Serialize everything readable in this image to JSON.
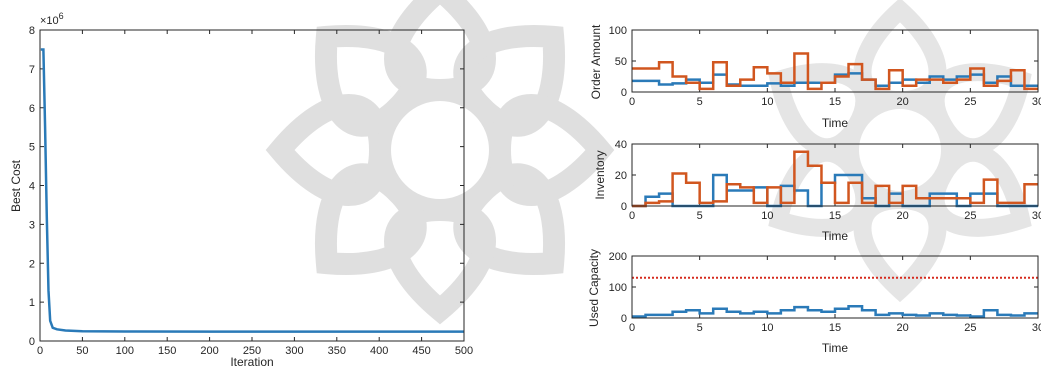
{
  "colors": {
    "blue": "#2a7ab8",
    "orange": "#d1561f",
    "red": "#d62b1e",
    "axis": "#262626",
    "wm": "#d9d9d9"
  },
  "chart_data": [
    {
      "id": "cost",
      "type": "line",
      "xlabel": "Iteration",
      "ylabel": "Best Cost",
      "exponent_label": "×10",
      "exponent_power": "6",
      "xlim": [
        0,
        500
      ],
      "ylim": [
        0,
        8000000
      ],
      "xticks": [
        0,
        50,
        100,
        150,
        200,
        250,
        300,
        350,
        400,
        450,
        500
      ],
      "yticks": [
        0,
        1,
        2,
        3,
        4,
        5,
        6,
        7,
        8
      ],
      "series": [
        {
          "x": [
            1,
            4,
            6,
            8,
            10,
            12,
            15,
            20,
            30,
            50,
            100,
            200,
            300,
            400,
            500
          ],
          "values": [
            7500000,
            7500000,
            5500000,
            3200000,
            1300000,
            520000,
            340000,
            300000,
            270000,
            250000,
            245000,
            242000,
            240000,
            240000,
            240000
          ]
        }
      ]
    },
    {
      "id": "order",
      "type": "line",
      "step": true,
      "xlabel": "Time",
      "ylabel": "Order Amount",
      "xlim": [
        0,
        30
      ],
      "ylim": [
        0,
        100
      ],
      "xticks": [
        0,
        5,
        10,
        15,
        20,
        25,
        30
      ],
      "yticks": [
        0,
        50,
        100
      ],
      "x": [
        0,
        1,
        2,
        3,
        4,
        5,
        6,
        7,
        8,
        9,
        10,
        11,
        12,
        13,
        14,
        15,
        16,
        17,
        18,
        19,
        20,
        21,
        22,
        23,
        24,
        25,
        26,
        27,
        28,
        29,
        30
      ],
      "series": [
        {
          "values": [
            18,
            18,
            12,
            14,
            20,
            15,
            28,
            12,
            10,
            10,
            14,
            10,
            15,
            15,
            15,
            28,
            30,
            20,
            10,
            15,
            20,
            15,
            25,
            20,
            25,
            28,
            15,
            25,
            10,
            10,
            10
          ]
        },
        {
          "values": [
            38,
            38,
            48,
            25,
            15,
            5,
            48,
            10,
            20,
            40,
            30,
            15,
            62,
            5,
            15,
            25,
            45,
            20,
            5,
            35,
            10,
            20,
            20,
            15,
            20,
            38,
            10,
            18,
            35,
            5,
            5
          ]
        }
      ]
    },
    {
      "id": "inv",
      "type": "line",
      "step": true,
      "xlabel": "Time",
      "ylabel": "Inventory",
      "xlim": [
        0,
        30
      ],
      "ylim": [
        0,
        40
      ],
      "xticks": [
        0,
        5,
        10,
        15,
        20,
        25,
        30
      ],
      "yticks": [
        0,
        20,
        40
      ],
      "x": [
        0,
        1,
        2,
        3,
        4,
        5,
        6,
        7,
        8,
        9,
        10,
        11,
        12,
        13,
        14,
        15,
        16,
        17,
        18,
        19,
        20,
        21,
        22,
        23,
        24,
        25,
        26,
        27,
        28,
        29,
        30
      ],
      "series": [
        {
          "values": [
            0,
            6,
            8,
            0,
            0,
            0,
            20,
            10,
            10,
            12,
            0,
            13,
            10,
            0,
            15,
            20,
            20,
            5,
            0,
            8,
            0,
            0,
            8,
            8,
            0,
            8,
            8,
            0,
            0,
            0,
            0
          ]
        },
        {
          "values": [
            0,
            2,
            3,
            21,
            15,
            2,
            3,
            14,
            12,
            2,
            12,
            2,
            35,
            26,
            15,
            2,
            15,
            2,
            13,
            2,
            13,
            5,
            5,
            5,
            5,
            2,
            17,
            2,
            2,
            14,
            14
          ]
        }
      ]
    },
    {
      "id": "cap",
      "type": "line",
      "step": true,
      "xlabel": "Time",
      "ylabel": "Used Capacity",
      "xlim": [
        0,
        30
      ],
      "ylim": [
        0,
        200
      ],
      "xticks": [
        0,
        5,
        10,
        15,
        20,
        25,
        30
      ],
      "yticks": [
        0,
        100,
        200
      ],
      "x": [
        0,
        1,
        2,
        3,
        4,
        5,
        6,
        7,
        8,
        9,
        10,
        11,
        12,
        13,
        14,
        15,
        16,
        17,
        18,
        19,
        20,
        21,
        22,
        23,
        24,
        25,
        26,
        27,
        28,
        29,
        30
      ],
      "capacity": 130,
      "series": [
        {
          "values": [
            5,
            10,
            10,
            20,
            25,
            15,
            30,
            20,
            15,
            20,
            15,
            25,
            35,
            25,
            20,
            30,
            38,
            25,
            10,
            15,
            10,
            8,
            15,
            10,
            8,
            5,
            25,
            10,
            8,
            15,
            15
          ]
        }
      ]
    }
  ]
}
